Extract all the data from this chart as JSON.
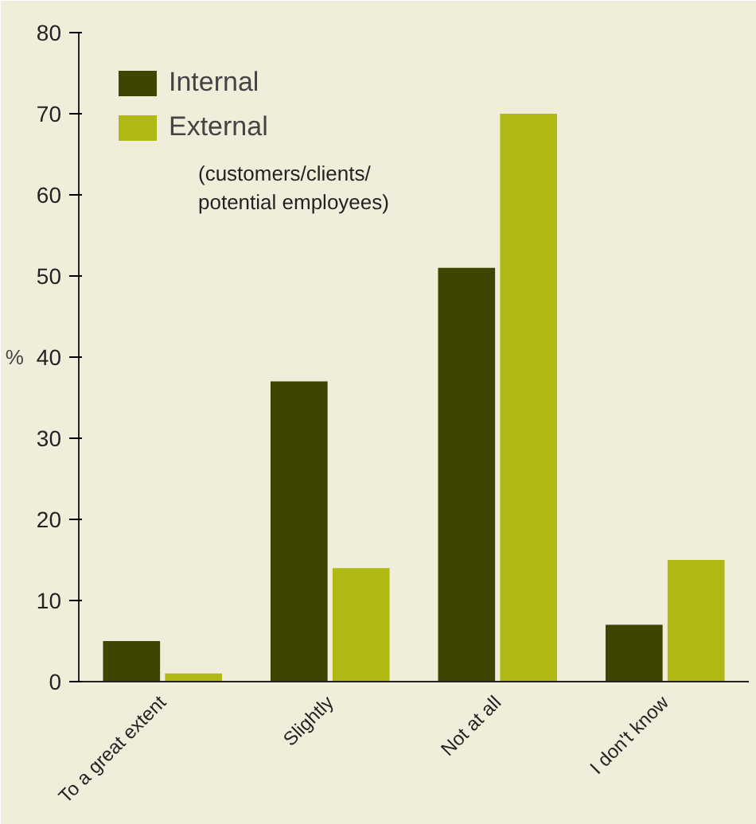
{
  "chart_data": {
    "type": "bar",
    "ylabel": "%",
    "categories": [
      "To a great extent",
      "Slightly",
      "Not at all",
      "I don't know"
    ],
    "series": [
      {
        "name": "Internal",
        "color": "#3d4500",
        "values": [
          5,
          37,
          51,
          7
        ]
      },
      {
        "name": "External",
        "color": "#b0b814",
        "values": [
          1,
          14,
          70,
          15
        ]
      }
    ],
    "annotations": [
      "(customers/clients/ potential employees)"
    ],
    "ylim": [
      0,
      80
    ],
    "yticks": [
      0,
      10,
      20,
      30,
      40,
      50,
      60,
      70,
      80
    ],
    "grid": false,
    "legend": "top left"
  }
}
